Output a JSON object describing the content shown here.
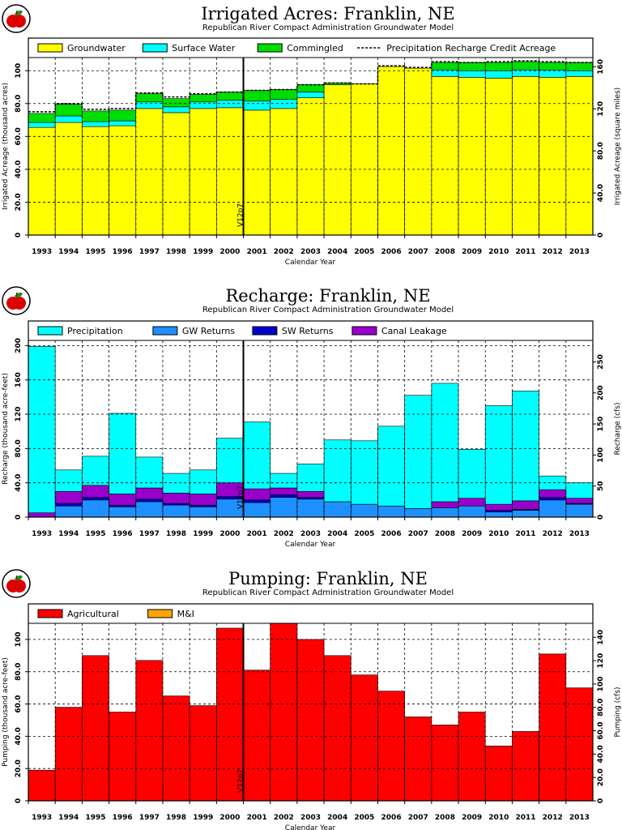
{
  "chart_data": [
    {
      "type": "bar",
      "stacked": true,
      "title": "Irrigated Acres: Franklin, NE",
      "subtitle": "Republican River Compact Administration Groundwater Model",
      "xlabel": "Calendar Year",
      "ylabel": "Irrigated Acreage (thousand acres)",
      "y2label": "Irrigated Acreage (square miles)",
      "ylim": [
        0,
        108
      ],
      "y2lim": [
        0,
        168.75
      ],
      "y_ticks": [
        "0",
        "20.0",
        "40.0",
        "60.0",
        "80.0",
        "100"
      ],
      "y2_ticks": [
        "0",
        "40.0",
        "80.0",
        "120",
        "160"
      ],
      "grid": true,
      "legend_position": "top",
      "marker_label": "V12p7",
      "categories": [
        "1993",
        "1994",
        "1995",
        "1996",
        "1997",
        "1998",
        "1999",
        "2000",
        "2001",
        "2002",
        "2003",
        "2004",
        "2005",
        "2006",
        "2007",
        "2008",
        "2009",
        "2010",
        "2011",
        "2012",
        "2013"
      ],
      "series": [
        {
          "name": "Groundwater",
          "color": "#ffff00",
          "values": [
            65.5,
            68.5,
            66.0,
            66.5,
            77.0,
            74.5,
            77.0,
            77.5,
            76.0,
            77.0,
            83.5,
            91.5,
            92.0,
            102.5,
            101.5,
            96.5,
            96.0,
            95.5,
            96.5,
            96.0,
            96.5
          ]
        },
        {
          "name": "Surface Water",
          "color": "#00ffff",
          "values": [
            3.0,
            4.0,
            3.0,
            3.0,
            4.0,
            3.5,
            4.0,
            4.5,
            5.5,
            5.5,
            3.5,
            0,
            0,
            0,
            0,
            4.0,
            4.0,
            4.5,
            4.0,
            4.5,
            3.5
          ]
        },
        {
          "name": "Commingled",
          "color": "#00dd00",
          "values": [
            5.5,
            7.0,
            6.5,
            6.5,
            5.0,
            5.0,
            4.5,
            5.0,
            6.5,
            6.0,
            4.5,
            1.0,
            0,
            0,
            0,
            4.5,
            5.0,
            5.0,
            5.0,
            4.5,
            5.0
          ]
        },
        {
          "name": "Precipitation Recharge Credit Acreage",
          "style": "dashed",
          "values": [
            75.0,
            80.0,
            76.5,
            77.0,
            86.5,
            84.0,
            86.0,
            87.0,
            88.0,
            88.5,
            91.5,
            92.5,
            92.0,
            103.0,
            102.0,
            105.5,
            105.0,
            105.5,
            106.0,
            105.5,
            105.0
          ]
        }
      ]
    },
    {
      "type": "bar",
      "stacked": true,
      "title": "Recharge: Franklin, NE",
      "subtitle": "Republican River Compact Administration Groundwater Model",
      "xlabel": "Calendar Year",
      "ylabel": "Recharge (thousand acre-feet)",
      "y2label": "Recharge (cfs)",
      "ylim": [
        0,
        206
      ],
      "y2lim": [
        0,
        284.5
      ],
      "y_ticks": [
        "0",
        "40.0",
        "80.0",
        "120",
        "160",
        "200"
      ],
      "y2_ticks": [
        "0",
        "50",
        "100",
        "150",
        "200",
        "250"
      ],
      "grid": true,
      "legend_position": "top",
      "marker_label": "V12p7",
      "categories": [
        "1993",
        "1994",
        "1995",
        "1996",
        "1997",
        "1998",
        "1999",
        "2000",
        "2001",
        "2002",
        "2003",
        "2004",
        "2005",
        "2006",
        "2007",
        "2008",
        "2009",
        "2010",
        "2011",
        "2012",
        "2013"
      ],
      "series": [
        {
          "name": "GW Returns",
          "color": "#1e90ff",
          "values": [
            0,
            13,
            20,
            12,
            18,
            14,
            12,
            21,
            17,
            23,
            21,
            18,
            15,
            13,
            10,
            11,
            13,
            6,
            8,
            20,
            15
          ]
        },
        {
          "name": "SW Returns",
          "color": "#0000cd",
          "values": [
            0,
            3,
            3,
            2,
            3,
            2,
            2,
            3,
            3,
            3,
            2,
            0,
            0,
            0,
            0,
            0,
            0,
            2,
            1,
            3,
            1
          ]
        },
        {
          "name": "Canal Leakage",
          "color": "#9900cc",
          "values": [
            5,
            14,
            14,
            13,
            13,
            12,
            13,
            16,
            13,
            8,
            7,
            0,
            0,
            0,
            0,
            7,
            9,
            7,
            10,
            9,
            6
          ]
        },
        {
          "name": "Precipitation",
          "color": "#00ffff",
          "values": [
            194,
            25,
            34,
            94,
            36,
            23,
            28,
            52,
            78,
            17,
            32,
            72,
            74,
            93,
            132,
            138,
            57,
            115,
            128,
            16,
            18
          ]
        }
      ]
    },
    {
      "type": "bar",
      "stacked": true,
      "title": "Pumping: Franklin, NE",
      "subtitle": "Republican River Compact Administration Groundwater Model",
      "xlabel": "Calendar Year",
      "ylabel": "Pumping (thousand acre-feet)",
      "y2label": "Pumping (cfs)",
      "ylim": [
        0,
        110
      ],
      "y2lim": [
        0,
        152
      ],
      "y_ticks": [
        "0",
        "20.0",
        "40.0",
        "60.0",
        "80.0",
        "100"
      ],
      "y2_ticks": [
        "0",
        "20.0",
        "40.0",
        "60.0",
        "80.0",
        "100",
        "120",
        "140"
      ],
      "grid": true,
      "legend_position": "top",
      "marker_label": "V12p7",
      "categories": [
        "1993",
        "1994",
        "1995",
        "1996",
        "1997",
        "1998",
        "1999",
        "2000",
        "2001",
        "2002",
        "2003",
        "2004",
        "2005",
        "2006",
        "2007",
        "2008",
        "2009",
        "2010",
        "2011",
        "2012",
        "2013"
      ],
      "series": [
        {
          "name": "Agricultural",
          "color": "#ff0000",
          "values": [
            19,
            58,
            90,
            55,
            87,
            65,
            59,
            107,
            81,
            110,
            100,
            90,
            78,
            68,
            52,
            47,
            55,
            34,
            43,
            91,
            70
          ]
        },
        {
          "name": "M&I",
          "color": "#ffa500",
          "values": [
            0,
            0,
            0,
            0,
            0,
            0,
            0,
            0,
            0,
            0,
            0,
            0,
            0,
            0,
            0,
            0,
            0,
            0,
            0,
            0,
            0
          ]
        }
      ]
    }
  ]
}
